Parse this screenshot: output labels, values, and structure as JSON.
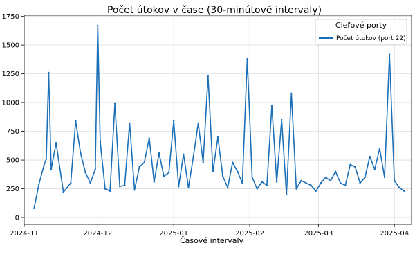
{
  "chart_data": {
    "type": "line",
    "title": "Počet útokov v čase (30-minútové intervaly)",
    "xlabel": "Časové intervaly",
    "ylabel": "",
    "ylim": [
      -60,
      1760
    ],
    "xlim": [
      "2024-11-01",
      "2025-04-08"
    ],
    "y_ticks": [
      0,
      250,
      500,
      750,
      1000,
      1250,
      1500,
      1750
    ],
    "y_tick_labels": [
      "0",
      "250",
      "500",
      "750",
      "1000",
      "1250",
      "1500",
      "1750"
    ],
    "x_ticks": [
      "2024-11-01",
      "2024-12-01",
      "2025-01-01",
      "2025-02-01",
      "2025-03-01",
      "2025-04-01"
    ],
    "x_tick_labels": [
      "2024-11",
      "2024-12",
      "2025-01",
      "2025-02",
      "2025-03",
      "2025-04"
    ],
    "grid": true,
    "legend": {
      "title": "Cieľové porty",
      "position": "top-right"
    },
    "series": [
      {
        "name": "Počet útokov (port 22)",
        "color": "#1a6fb8",
        "x": [
          "2024-11-05",
          "2024-11-07",
          "2024-11-09",
          "2024-11-10",
          "2024-11-11",
          "2024-11-12",
          "2024-11-14",
          "2024-11-17",
          "2024-11-20",
          "2024-11-22",
          "2024-11-24",
          "2024-11-26",
          "2024-11-28",
          "2024-11-30",
          "2024-12-01",
          "2024-12-02",
          "2024-12-04",
          "2024-12-06",
          "2024-12-08",
          "2024-12-10",
          "2024-12-12",
          "2024-12-14",
          "2024-12-16",
          "2024-12-18",
          "2024-12-20",
          "2024-12-22",
          "2024-12-24",
          "2024-12-26",
          "2024-12-28",
          "2024-12-30",
          "2025-01-01",
          "2025-01-03",
          "2025-01-05",
          "2025-01-07",
          "2025-01-09",
          "2025-01-11",
          "2025-01-13",
          "2025-01-15",
          "2025-01-17",
          "2025-01-19",
          "2025-01-21",
          "2025-01-23",
          "2025-01-25",
          "2025-01-27",
          "2025-01-29",
          "2025-01-31",
          "2025-02-02",
          "2025-02-04",
          "2025-02-06",
          "2025-02-08",
          "2025-02-10",
          "2025-02-12",
          "2025-02-14",
          "2025-02-16",
          "2025-02-18",
          "2025-02-20",
          "2025-02-22",
          "2025-02-24",
          "2025-02-26",
          "2025-02-28",
          "2025-03-02",
          "2025-03-04",
          "2025-03-06",
          "2025-03-08",
          "2025-03-10",
          "2025-03-12",
          "2025-03-14",
          "2025-03-16",
          "2025-03-18",
          "2025-03-20",
          "2025-03-22",
          "2025-03-24",
          "2025-03-26",
          "2025-03-28",
          "2025-03-30",
          "2025-04-01",
          "2025-04-03",
          "2025-04-05"
        ],
        "values": [
          80,
          290,
          450,
          510,
          1260,
          420,
          650,
          220,
          300,
          840,
          560,
          390,
          300,
          420,
          1670,
          660,
          250,
          230,
          990,
          270,
          280,
          820,
          240,
          440,
          480,
          690,
          310,
          560,
          360,
          390,
          840,
          270,
          550,
          260,
          530,
          820,
          480,
          1230,
          400,
          700,
          360,
          260,
          480,
          400,
          300,
          1380,
          350,
          250,
          310,
          280,
          970,
          310,
          850,
          200,
          1080,
          250,
          320,
          300,
          280,
          230,
          300,
          350,
          320,
          400,
          300,
          280,
          460,
          440,
          300,
          350,
          530,
          420,
          600,
          350,
          1420,
          320,
          260,
          230
        ]
      }
    ]
  }
}
